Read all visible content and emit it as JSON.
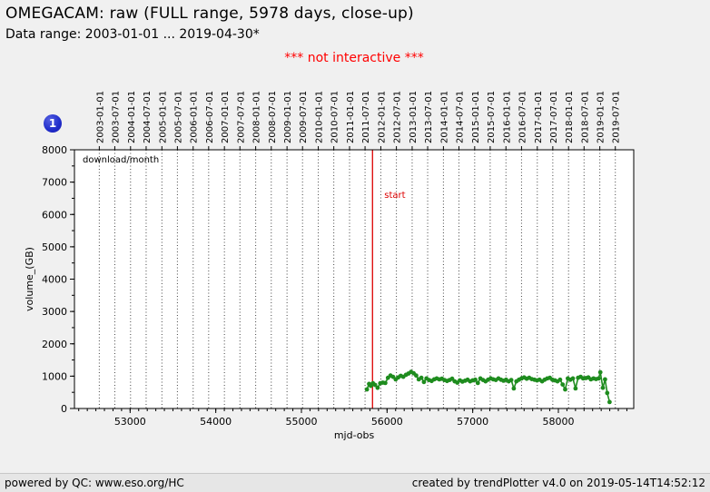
{
  "header": {
    "title": "OMEGACAM: raw (FULL range, 5978 days, close-up)",
    "subtitle": "Data range: 2003-01-01 ... 2019-04-30*",
    "notice": "*** not interactive ***",
    "plot_index_badge": "1"
  },
  "footer": {
    "left": "powered by QC: www.eso.org/HC",
    "right": "created by trendPlotter v4.0 on 2019-05-14T14:52:12"
  },
  "colors": {
    "notice_red": "#ff0000",
    "start_line_red": "#dd0000",
    "series_green": "#1e8c1e",
    "badge_blue": "#2230cc",
    "page_bg": "#f0f0f0",
    "plot_bg": "#ffffff",
    "gridline": "#444444"
  },
  "chart_data": {
    "type": "line",
    "inner_label": "download/month",
    "xlabel": "mjd-obs",
    "ylabel": "volume_(GB)",
    "xlim": [
      52350,
      58880
    ],
    "ylim": [
      0,
      8000
    ],
    "x_major_ticks": [
      53000,
      54000,
      55000,
      56000,
      57000,
      58000
    ],
    "x_minor_step": 100,
    "y_major_ticks": [
      0,
      1000,
      2000,
      3000,
      4000,
      5000,
      6000,
      7000,
      8000
    ],
    "y_minor_step": 500,
    "grid": "vertical dotted lines at half-year dates",
    "legend_position": "none",
    "top_axis": {
      "labels": [
        "2003-01-01",
        "2003-07-01",
        "2004-01-01",
        "2004-07-01",
        "2005-01-01",
        "2005-07-01",
        "2006-01-01",
        "2006-07-01",
        "2007-01-01",
        "2007-07-01",
        "2008-01-01",
        "2008-07-01",
        "2009-01-01",
        "2009-07-01",
        "2010-01-01",
        "2010-07-01",
        "2011-01-01",
        "2011-07-01",
        "2012-01-01",
        "2012-07-01",
        "2013-01-01",
        "2013-07-01",
        "2014-01-01",
        "2014-07-01",
        "2015-01-01",
        "2015-07-01",
        "2016-01-01",
        "2016-07-01",
        "2017-01-01",
        "2017-07-01",
        "2018-01-01",
        "2018-07-01",
        "2019-01-01",
        "2019-07-01"
      ],
      "mjd": [
        52640,
        52821,
        53005,
        53187,
        53371,
        53552,
        53736,
        53917,
        54101,
        54282,
        54466,
        54648,
        54832,
        55013,
        55197,
        55378,
        55562,
        55743,
        55927,
        56109,
        56293,
        56474,
        56658,
        56839,
        57023,
        57204,
        57388,
        57570,
        57754,
        57935,
        58119,
        58300,
        58484,
        58665
      ]
    },
    "annotations": [
      {
        "label": "start",
        "mjd": 55830,
        "color": "#dd0000"
      }
    ],
    "series": [
      {
        "name": "download/month",
        "color": "#1e8c1e",
        "marker": "circle",
        "points": [
          [
            55764,
            590
          ],
          [
            55790,
            760
          ],
          [
            55810,
            700
          ],
          [
            55835,
            780
          ],
          [
            55860,
            730
          ],
          [
            55890,
            640
          ],
          [
            55920,
            780
          ],
          [
            55950,
            800
          ],
          [
            55980,
            790
          ],
          [
            56010,
            950
          ],
          [
            56040,
            1020
          ],
          [
            56070,
            980
          ],
          [
            56100,
            900
          ],
          [
            56130,
            960
          ],
          [
            56160,
            1010
          ],
          [
            56190,
            980
          ],
          [
            56220,
            1040
          ],
          [
            56250,
            1080
          ],
          [
            56280,
            1130
          ],
          [
            56310,
            1090
          ],
          [
            56340,
            1020
          ],
          [
            56370,
            900
          ],
          [
            56400,
            950
          ],
          [
            56430,
            820
          ],
          [
            56460,
            930
          ],
          [
            56490,
            880
          ],
          [
            56520,
            850
          ],
          [
            56550,
            900
          ],
          [
            56580,
            930
          ],
          [
            56610,
            900
          ],
          [
            56640,
            920
          ],
          [
            56670,
            880
          ],
          [
            56700,
            850
          ],
          [
            56730,
            880
          ],
          [
            56760,
            920
          ],
          [
            56790,
            840
          ],
          [
            56820,
            800
          ],
          [
            56850,
            870
          ],
          [
            56880,
            830
          ],
          [
            56910,
            860
          ],
          [
            56940,
            890
          ],
          [
            56970,
            840
          ],
          [
            57000,
            870
          ],
          [
            57030,
            890
          ],
          [
            57060,
            790
          ],
          [
            57090,
            930
          ],
          [
            57120,
            880
          ],
          [
            57150,
            840
          ],
          [
            57180,
            890
          ],
          [
            57210,
            930
          ],
          [
            57240,
            900
          ],
          [
            57270,
            880
          ],
          [
            57300,
            930
          ],
          [
            57330,
            890
          ],
          [
            57360,
            860
          ],
          [
            57390,
            890
          ],
          [
            57420,
            840
          ],
          [
            57450,
            880
          ],
          [
            57480,
            620
          ],
          [
            57510,
            840
          ],
          [
            57540,
            890
          ],
          [
            57570,
            930
          ],
          [
            57600,
            960
          ],
          [
            57630,
            920
          ],
          [
            57660,
            950
          ],
          [
            57690,
            910
          ],
          [
            57720,
            890
          ],
          [
            57750,
            870
          ],
          [
            57780,
            890
          ],
          [
            57810,
            840
          ],
          [
            57840,
            890
          ],
          [
            57870,
            930
          ],
          [
            57900,
            950
          ],
          [
            57930,
            890
          ],
          [
            57960,
            870
          ],
          [
            57990,
            840
          ],
          [
            58020,
            890
          ],
          [
            58050,
            740
          ],
          [
            58080,
            590
          ],
          [
            58110,
            930
          ],
          [
            58140,
            890
          ],
          [
            58170,
            930
          ],
          [
            58200,
            620
          ],
          [
            58230,
            950
          ],
          [
            58260,
            980
          ],
          [
            58290,
            930
          ],
          [
            58320,
            940
          ],
          [
            58350,
            960
          ],
          [
            58380,
            900
          ],
          [
            58410,
            930
          ],
          [
            58440,
            910
          ],
          [
            58470,
            930
          ],
          [
            58490,
            1120
          ],
          [
            58520,
            640
          ],
          [
            58545,
            900
          ],
          [
            58570,
            480
          ],
          [
            58598,
            200
          ]
        ]
      }
    ]
  }
}
